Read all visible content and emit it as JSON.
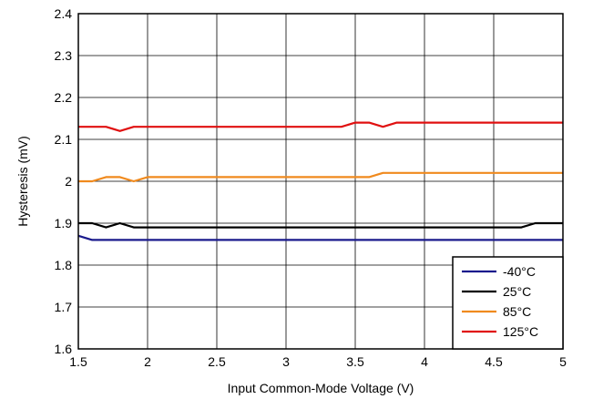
{
  "chart_data": {
    "type": "line",
    "title": "",
    "xlabel": "Input Common-Mode Voltage (V)",
    "ylabel": "Hysteresis (mV)",
    "xlim": [
      1.5,
      5
    ],
    "ylim": [
      1.6,
      2.4
    ],
    "xticks": [
      "1.5",
      "2",
      "2.5",
      "3",
      "3.5",
      "4",
      "4.5",
      "5"
    ],
    "yticks": [
      "1.6",
      "1.7",
      "1.8",
      "1.9",
      "2",
      "2.1",
      "2.2",
      "2.3",
      "2.4"
    ],
    "grid": true,
    "legend_position": "bottom-right",
    "series": [
      {
        "name": "-40°C",
        "color": "#1a1a8c",
        "x": [
          1.5,
          1.6,
          1.7,
          1.8,
          1.9,
          2.0,
          2.5,
          3.0,
          3.5,
          4.0,
          4.5,
          5.0
        ],
        "y": [
          1.87,
          1.86,
          1.86,
          1.86,
          1.86,
          1.86,
          1.86,
          1.86,
          1.86,
          1.86,
          1.86,
          1.86
        ]
      },
      {
        "name": "25°C",
        "color": "#000000",
        "x": [
          1.5,
          1.6,
          1.7,
          1.8,
          1.9,
          2.0,
          2.5,
          3.0,
          3.5,
          4.0,
          4.5,
          4.7,
          4.8,
          4.9,
          5.0
        ],
        "y": [
          1.9,
          1.9,
          1.89,
          1.9,
          1.89,
          1.89,
          1.89,
          1.89,
          1.89,
          1.89,
          1.89,
          1.89,
          1.9,
          1.9,
          1.9
        ]
      },
      {
        "name": "85°C",
        "color": "#f08a1e",
        "x": [
          1.5,
          1.6,
          1.7,
          1.8,
          1.9,
          2.0,
          2.5,
          3.0,
          3.5,
          3.6,
          3.7,
          4.0,
          4.5,
          5.0
        ],
        "y": [
          2.0,
          2.0,
          2.01,
          2.01,
          2.0,
          2.01,
          2.01,
          2.01,
          2.01,
          2.01,
          2.02,
          2.02,
          2.02,
          2.02
        ]
      },
      {
        "name": "125°C",
        "color": "#e01010",
        "x": [
          1.5,
          1.6,
          1.7,
          1.8,
          1.9,
          2.0,
          2.5,
          3.0,
          3.4,
          3.5,
          3.6,
          3.7,
          3.8,
          4.0,
          4.5,
          5.0
        ],
        "y": [
          2.13,
          2.13,
          2.13,
          2.12,
          2.13,
          2.13,
          2.13,
          2.13,
          2.13,
          2.14,
          2.14,
          2.13,
          2.14,
          2.14,
          2.14,
          2.14
        ]
      }
    ]
  }
}
